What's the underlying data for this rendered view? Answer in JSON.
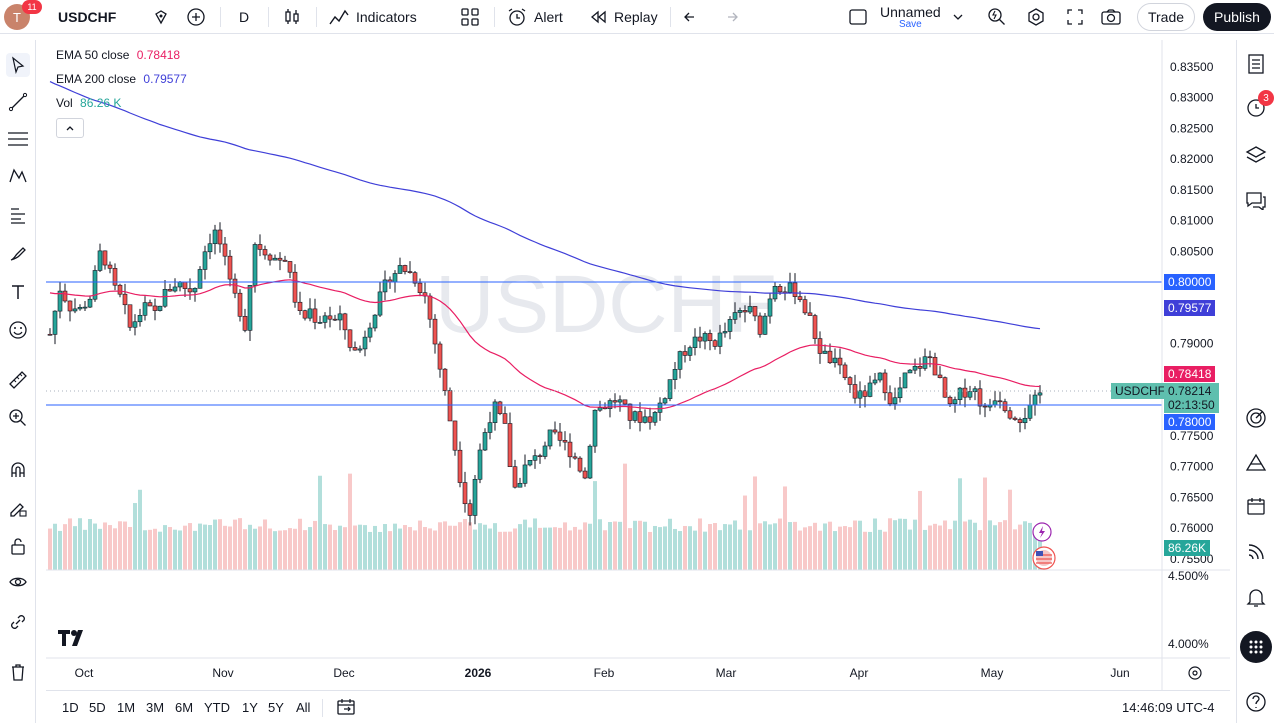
{
  "header": {
    "avatar_letter": "T",
    "notification_count": "11",
    "symbol": "USDCHF",
    "interval": "D",
    "indicators_label": "Indicators",
    "alert_label": "Alert",
    "replay_label": "Replay",
    "layout_name": "Unnamed",
    "layout_save": "Save",
    "trade_label": "Trade",
    "publish_label": "Publish"
  },
  "legend": {
    "ema50_label": "EMA 50 close",
    "ema50_value": "0.78418",
    "ema200_label": "EMA 200 close",
    "ema200_value": "0.79577",
    "vol_label": "Vol",
    "vol_value": "86.26 K"
  },
  "watermark": "USDCHF",
  "price_axis": {
    "ticks": [
      "0.83500",
      "0.83000",
      "0.82500",
      "0.82000",
      "0.81500",
      "0.81000",
      "0.80500",
      "0.79000",
      "0.77500",
      "0.77000",
      "0.76500",
      "0.76000",
      "0.75500"
    ],
    "tag_08": "0.80000",
    "tag_ema200": "0.79577",
    "tag_ema50": "0.78418",
    "tag_symbol": "USDCHF",
    "tag_last": "0.78214",
    "tag_countdown": "02:13:50",
    "tag_078": "0.78000",
    "tag_vol": "86.26K",
    "pct_ticks": [
      "4.500%",
      "4.000%"
    ]
  },
  "time_axis": [
    "Oct",
    "Nov",
    "Dec",
    "2026",
    "Feb",
    "Mar",
    "Apr",
    "May",
    "Jun"
  ],
  "ranges": [
    "1D",
    "5D",
    "1M",
    "3M",
    "6M",
    "YTD",
    "1Y",
    "5Y",
    "All"
  ],
  "clock": "14:46:09 UTC-4",
  "alerts_badge": "3",
  "colors": {
    "up": "#26a69a",
    "down": "#ef5350",
    "ema50": "#e91e63",
    "ema200": "#3f3fd8",
    "level": "#2962ff"
  },
  "chart_data": {
    "type": "candlestick",
    "title": "USDCHF",
    "x_range": [
      "Sep 2025",
      "Jun 2026"
    ],
    "ylim": [
      0.755,
      0.836
    ],
    "levels": [
      0.8,
      0.78
    ],
    "last": 0.78214
  }
}
